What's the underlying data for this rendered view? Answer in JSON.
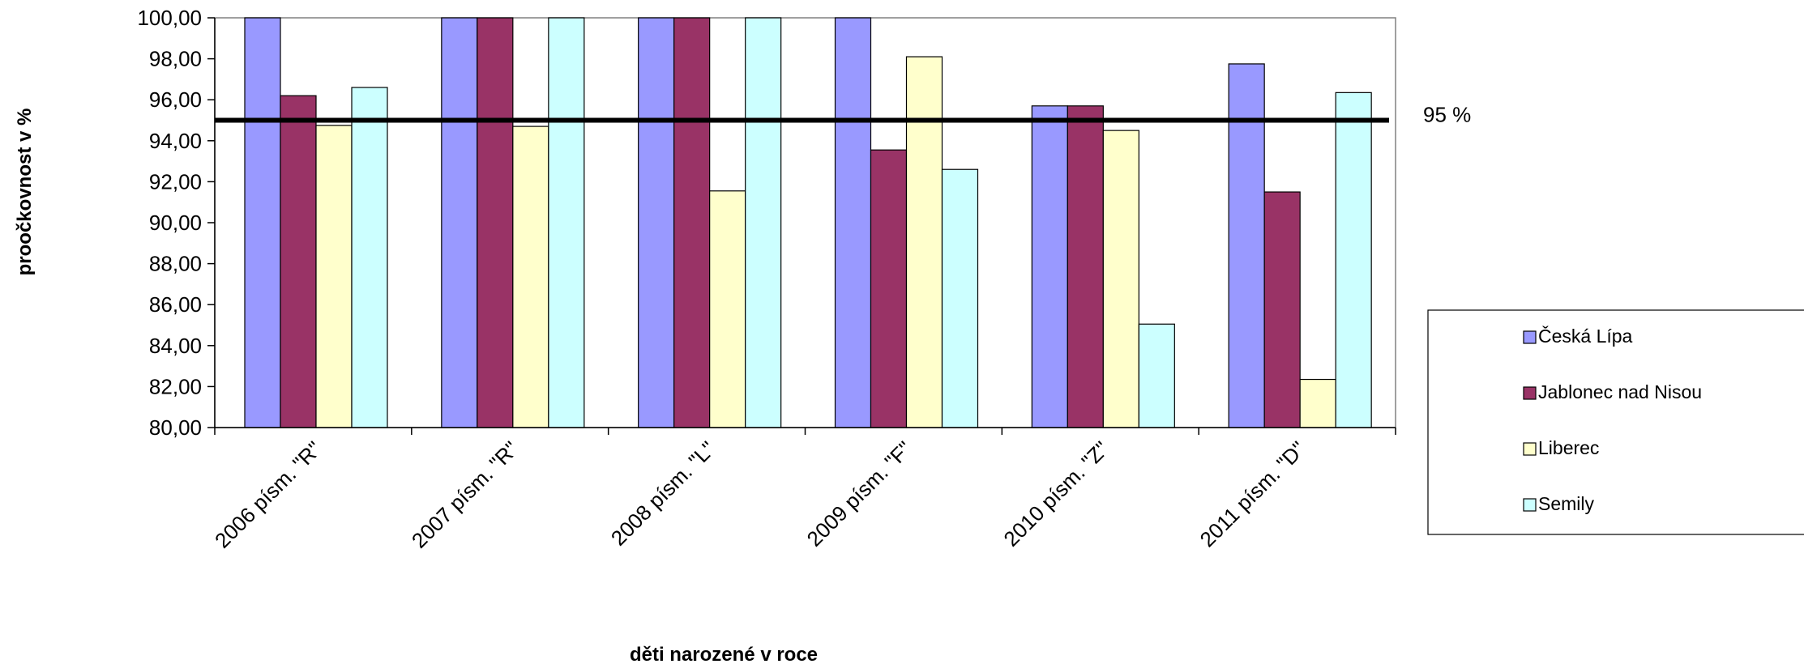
{
  "chart_data": {
    "type": "bar",
    "title": "",
    "xlabel": "děti narozené v roce",
    "ylabel": "proočkovnost v %",
    "ylim": [
      80,
      100
    ],
    "yticks": [
      "80,00",
      "82,00",
      "84,00",
      "86,00",
      "88,00",
      "90,00",
      "92,00",
      "94,00",
      "96,00",
      "98,00",
      "100,00"
    ],
    "categories": [
      "2006 písm. \"R\"",
      "2007 písm. \"R\"",
      "2008 písm. \"L\"",
      "2009 písm. \"F\"",
      "2010 písm. \"Z\"",
      "2011 písm. \"D\""
    ],
    "series": [
      {
        "name": "Česká Lípa",
        "color": "#9999ff",
        "values": [
          100.0,
          100.0,
          100.0,
          100.0,
          95.7,
          97.75
        ]
      },
      {
        "name": "Jablonec nad Nisou",
        "color": "#993366",
        "values": [
          96.2,
          100.0,
          100.0,
          93.55,
          95.7,
          91.5
        ]
      },
      {
        "name": "Liberec",
        "color": "#ffffcc",
        "values": [
          94.75,
          94.7,
          91.55,
          98.1,
          94.5,
          82.35
        ]
      },
      {
        "name": "Semily",
        "color": "#ccffff",
        "values": [
          96.6,
          100.0,
          100.0,
          92.6,
          85.05,
          96.35
        ]
      }
    ],
    "reference_line": {
      "value": 95,
      "label": "95 %"
    },
    "grid": false,
    "legend_position": "right"
  }
}
